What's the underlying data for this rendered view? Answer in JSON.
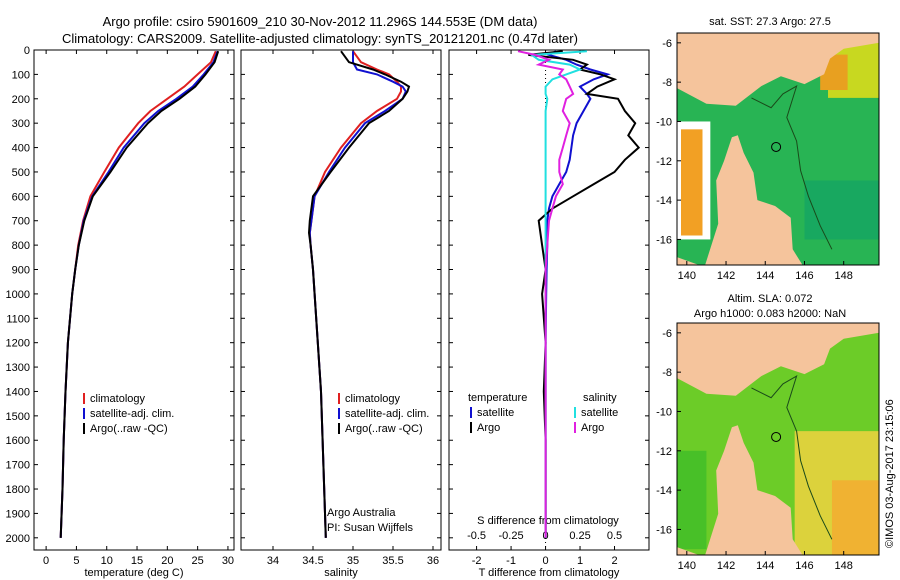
{
  "header": {
    "line1": "Argo profile: csiro 5901609_210 30-Nov-2012 11.296S 144.553E (DM data)",
    "line2": "Climatology: CARS2009. Satellite-adjusted climatology: synTS_20121201.nc (0.47d later)"
  },
  "colors": {
    "climatology": "#e02020",
    "satellite": "#1010d0",
    "argo": "#000000",
    "salinity_satellite": "#20e0e0",
    "salinity_argo": "#e020e0",
    "land": "#f5c49c",
    "ocean_mid": "#3cb83c"
  },
  "chart_data": [
    {
      "type": "line",
      "name": "temperature",
      "title": "",
      "xlabel": "temperature (deg C)",
      "ylabel": "",
      "xlim": [
        -2,
        31
      ],
      "ylim": [
        2050,
        0
      ],
      "xticks": [
        "0",
        "5",
        "10",
        "15",
        "20",
        "25",
        "30"
      ],
      "xtick_values": [
        0,
        5,
        10,
        15,
        20,
        25,
        30
      ],
      "yticks": [
        "0",
        "100",
        "200",
        "300",
        "400",
        "500",
        "600",
        "700",
        "800",
        "900",
        "1000",
        "1100",
        "1200",
        "1300",
        "1400",
        "1500",
        "1600",
        "1700",
        "1800",
        "1900",
        "2000"
      ],
      "ytick_values": [
        0,
        100,
        200,
        300,
        400,
        500,
        600,
        700,
        800,
        900,
        1000,
        1100,
        1200,
        1300,
        1400,
        1500,
        1600,
        1700,
        1800,
        1900,
        2000
      ],
      "depth": [
        5,
        50,
        100,
        150,
        200,
        250,
        300,
        400,
        500,
        600,
        700,
        800,
        900,
        1000,
        1200,
        1400,
        1600,
        1800,
        2000
      ],
      "series": [
        {
          "name": "climatology",
          "color_key": "climatology",
          "values": [
            28.0,
            27.2,
            25.0,
            22.8,
            20.0,
            17.2,
            15.2,
            12.0,
            9.6,
            7.3,
            6.1,
            5.3,
            4.8,
            4.3,
            3.6,
            3.2,
            2.9,
            2.7,
            2.4
          ]
        },
        {
          "name": "satellite-adj. clim.",
          "color_key": "satellite",
          "values": [
            28.3,
            27.6,
            26.0,
            24.2,
            21.5,
            18.5,
            16.2,
            12.8,
            10.3,
            7.6,
            6.2,
            5.4,
            4.8,
            4.3,
            3.6,
            3.2,
            2.9,
            2.7,
            2.4
          ]
        },
        {
          "name": "Argo(..raw -QC)",
          "color_key": "argo",
          "values": [
            28.4,
            27.8,
            26.3,
            24.6,
            22.0,
            19.0,
            16.8,
            13.3,
            10.6,
            7.7,
            6.3,
            5.4,
            4.8,
            4.3,
            3.6,
            3.2,
            2.9,
            2.7,
            2.4
          ]
        }
      ],
      "legend": [
        "climatology",
        "satellite-adj. clim.",
        "Argo(..raw -QC)"
      ],
      "legend_position": "bottom-right"
    },
    {
      "type": "line",
      "name": "salinity",
      "title": "",
      "xlabel": "salinity",
      "xlim": [
        33.6,
        36.1
      ],
      "ylim": [
        2050,
        0
      ],
      "xticks": [
        "34",
        "34.5",
        "35",
        "35.5",
        "36"
      ],
      "xtick_values": [
        34,
        34.5,
        35,
        35.5,
        36
      ],
      "depth": [
        5,
        50,
        80,
        100,
        130,
        150,
        170,
        200,
        250,
        300,
        400,
        500,
        600,
        700,
        750,
        800,
        900,
        1000,
        1200,
        1400,
        1600,
        1800,
        2000
      ],
      "series": [
        {
          "name": "climatology",
          "color_key": "climatology",
          "values": [
            35.0,
            35.1,
            35.3,
            35.45,
            35.55,
            35.6,
            35.6,
            35.55,
            35.3,
            35.1,
            34.85,
            34.65,
            34.52,
            34.48,
            34.46,
            34.47,
            34.5,
            34.52,
            34.56,
            34.6,
            34.62,
            34.64,
            34.66
          ]
        },
        {
          "name": "satellite-adj. clim.",
          "color_key": "satellite",
          "values": [
            35.0,
            35.0,
            35.05,
            35.3,
            35.5,
            35.62,
            35.66,
            35.62,
            35.4,
            35.15,
            34.9,
            34.7,
            34.52,
            34.48,
            34.46,
            34.47,
            34.5,
            34.52,
            34.56,
            34.6,
            34.62,
            34.64,
            34.66
          ]
        },
        {
          "name": "Argo(..raw -QC)",
          "color_key": "argo",
          "values": [
            34.85,
            34.95,
            35.25,
            35.4,
            35.6,
            35.7,
            35.68,
            35.62,
            35.45,
            35.2,
            34.95,
            34.72,
            34.5,
            34.46,
            34.45,
            34.47,
            34.5,
            34.52,
            34.56,
            34.6,
            34.62,
            34.64,
            34.66
          ]
        }
      ],
      "legend": [
        "climatology",
        "satellite-adj. clim.",
        "Argo(..raw -QC)"
      ],
      "legend_position": "bottom-right",
      "annotation": [
        "Argo Australia",
        "PI: Susan Wijffels"
      ]
    },
    {
      "type": "line",
      "name": "differences",
      "xlabel_top": "S difference from climatology",
      "xlabel": "T difference from climatology",
      "xlim": [
        -2.8,
        3.0
      ],
      "ylim": [
        2050,
        0
      ],
      "xticks_T": [
        "-2",
        "-1",
        "0",
        "1",
        "2"
      ],
      "xticks_T_values": [
        -2,
        -1,
        0,
        1,
        2
      ],
      "xticks_S": [
        "-0.5",
        "-0.25",
        "0",
        "0.25",
        "0.5"
      ],
      "xticks_S_values": [
        -0.5,
        -0.25,
        0,
        0.25,
        0.5
      ],
      "depth": [
        5,
        20,
        40,
        60,
        80,
        100,
        120,
        150,
        180,
        200,
        250,
        300,
        350,
        400,
        450,
        500,
        550,
        600,
        650,
        700,
        800,
        900,
        1000,
        1200,
        1400,
        1600,
        1800,
        2000
      ],
      "series": [
        {
          "name": "temperature satellite",
          "color_key": "satellite",
          "values": [
            0.3,
            0.1,
            0.6,
            0.9,
            1.3,
            1.8,
            1.4,
            1.0,
            1.2,
            1.3,
            1.1,
            0.9,
            0.8,
            0.75,
            0.7,
            0.6,
            0.4,
            0.2,
            0.1,
            0.05,
            0.05,
            0.03,
            0.02,
            0.0,
            0.0,
            0.0,
            0.0,
            0.0
          ]
        },
        {
          "name": "temperature Argo",
          "color_key": "argo",
          "values": [
            0.5,
            -0.5,
            0.8,
            1.2,
            1.0,
            1.6,
            2.0,
            1.5,
            1.2,
            2.1,
            2.3,
            2.6,
            2.4,
            2.7,
            2.3,
            2.0,
            1.4,
            0.8,
            0.2,
            -0.2,
            -0.1,
            0.0,
            -0.1,
            0.0,
            -0.05,
            0.0,
            0.0,
            0.0
          ]
        },
        {
          "name": "salinity satellite",
          "color_key": "salinity_satellite",
          "values": [
            1.2,
            -0.4,
            -0.2,
            0.7,
            1.0,
            0.6,
            0.2,
            0.0,
            0.0,
            0.05,
            0.0,
            0.0,
            0.0,
            0.0,
            0.0,
            0.0,
            0.0,
            0.0,
            0.0,
            0.0,
            0.0,
            0.0,
            0.0,
            0.0,
            0.0,
            0.0,
            0.0,
            0.0
          ]
        },
        {
          "name": "salinity Argo",
          "color_key": "salinity_argo",
          "values": [
            -0.8,
            -0.3,
            0.1,
            -0.2,
            0.5,
            0.4,
            0.6,
            0.7,
            0.8,
            0.6,
            0.5,
            0.7,
            0.6,
            0.5,
            0.4,
            0.4,
            0.5,
            0.3,
            0.2,
            0.1,
            0.05,
            0.0,
            0.0,
            0.0,
            0.0,
            0.0,
            0.0,
            0.0
          ]
        }
      ],
      "legend_temperature": {
        "title": "temperature",
        "items": [
          "satellite",
          "Argo"
        ]
      },
      "legend_salinity": {
        "title": "salinity",
        "items": [
          "satellite",
          "Argo"
        ]
      }
    },
    {
      "type": "heatmap",
      "name": "sst-map",
      "title": "sat. SST: 27.3 Argo: 27.5",
      "xticks": [
        "140",
        "142",
        "144",
        "146",
        "148"
      ],
      "xtick_values": [
        140,
        142,
        144,
        146,
        148
      ],
      "yticks": [
        "-6",
        "-8",
        "-10",
        "-12",
        "-14",
        "-16"
      ],
      "ytick_values": [
        -6,
        -8,
        -10,
        -12,
        -14,
        -16
      ],
      "xlim": [
        139.5,
        149.8
      ],
      "ylim": [
        -17.3,
        -5.5
      ],
      "marker": {
        "lon": 144.553,
        "lat": -11.296
      }
    },
    {
      "type": "heatmap",
      "name": "sla-map",
      "title": "Altim. SLA: 0.072",
      "subtitle": "Argo h1000: 0.083 h2000: NaN",
      "xticks": [
        "140",
        "142",
        "144",
        "146",
        "148"
      ],
      "xtick_values": [
        140,
        142,
        144,
        146,
        148
      ],
      "yticks": [
        "-6",
        "-8",
        "-10",
        "-12",
        "-14",
        "-16"
      ],
      "ytick_values": [
        -6,
        -8,
        -10,
        -12,
        -14,
        -16
      ],
      "xlim": [
        139.5,
        149.8
      ],
      "ylim": [
        -17.3,
        -5.5
      ],
      "marker": {
        "lon": 144.553,
        "lat": -11.296
      }
    }
  ],
  "footer": {
    "stamp": "©IMOS 03-Aug-2017 23:15:06"
  }
}
